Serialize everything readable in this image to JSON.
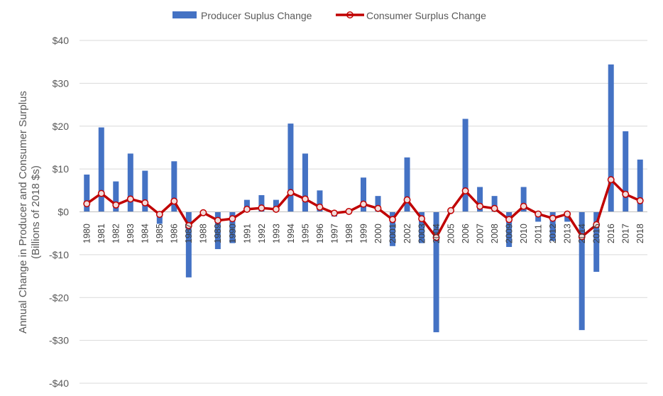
{
  "chart_data": {
    "type": "bar",
    "ylabel_line1": "Annual Change in Producer and Consumer Surplus",
    "ylabel_line2": "(Billions of 2018 $s)",
    "ylim": [
      -40,
      40
    ],
    "yticks": [
      {
        "value": 40,
        "label": "$40"
      },
      {
        "value": 30,
        "label": "$30"
      },
      {
        "value": 20,
        "label": "$20"
      },
      {
        "value": 10,
        "label": "$10"
      },
      {
        "value": 0,
        "label": "$0"
      },
      {
        "value": -10,
        "label": "-$10"
      },
      {
        "value": -20,
        "label": "-$20"
      },
      {
        "value": -30,
        "label": "-$30"
      },
      {
        "value": -40,
        "label": "-$40"
      }
    ],
    "grid": true,
    "legend_position": "top-center",
    "categories": [
      "1980",
      "1981",
      "1982",
      "1983",
      "1984",
      "1985",
      "1986",
      "1987",
      "1988",
      "1989",
      "1990",
      "1991",
      "1992",
      "1993",
      "1994",
      "1995",
      "1996",
      "1997",
      "1998",
      "1999",
      "2000",
      "2001",
      "2002",
      "2003",
      "2004",
      "2005",
      "2006",
      "2007",
      "2008",
      "2009",
      "2010",
      "2011",
      "2012",
      "2013",
      "2014",
      "2015",
      "2016",
      "2017",
      "2018"
    ],
    "series": [
      {
        "name": "Producer Suplus Change",
        "kind": "bar",
        "color": "#4472C4",
        "values": [
          8.7,
          19.7,
          7.1,
          13.6,
          9.6,
          -2.8,
          11.8,
          -15.3,
          0,
          -8.7,
          -7.3,
          2.8,
          3.9,
          2.8,
          20.6,
          13.6,
          5.0,
          -1.1,
          0.4,
          8.0,
          3.7,
          -8.0,
          12.7,
          -7.3,
          -28.1,
          0.5,
          21.7,
          5.8,
          3.7,
          -8.2,
          5.8,
          -2.3,
          -6.8,
          -2.3,
          -27.6,
          -14.0,
          34.4,
          18.8,
          12.2
        ]
      },
      {
        "name": "Consumer Surplus Change",
        "kind": "line",
        "color": "#C00000",
        "values": [
          1.9,
          4.3,
          1.6,
          3.0,
          2.1,
          -0.6,
          2.5,
          -3.2,
          -0.2,
          -2.0,
          -1.6,
          0.6,
          0.9,
          0.6,
          4.5,
          3.0,
          1.1,
          -0.3,
          0.1,
          1.8,
          0.8,
          -1.8,
          2.8,
          -1.6,
          -6.0,
          0.3,
          4.9,
          1.3,
          0.8,
          -1.8,
          1.3,
          -0.5,
          -1.5,
          -0.5,
          -5.8,
          -3.0,
          7.5,
          4.1,
          2.6
        ]
      }
    ]
  }
}
